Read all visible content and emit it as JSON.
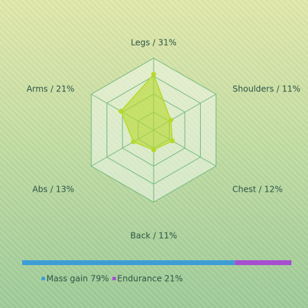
{
  "chart_data": [
    {
      "type": "radar",
      "categories": [
        "Legs / 31%",
        "Shoulders / 11%",
        "Chest / 12%",
        "Back / 11%",
        "Abs / 13%",
        "Arms / 21%"
      ],
      "values": [
        31,
        11,
        12,
        11,
        13,
        21
      ],
      "rlim": [
        0,
        40
      ],
      "rticks": [
        10,
        20,
        30,
        40
      ],
      "color": "#b5d92a",
      "grid_color": "#6fb77a"
    },
    {
      "type": "stacked-bar",
      "xlim": [
        0,
        100
      ],
      "series": [
        {
          "name": "Mass gain 79%",
          "color": "#3d9ed6",
          "values": [
            79
          ]
        },
        {
          "name": "Endurance 21%",
          "color": "#a64fd0",
          "values": [
            21
          ]
        }
      ]
    }
  ]
}
